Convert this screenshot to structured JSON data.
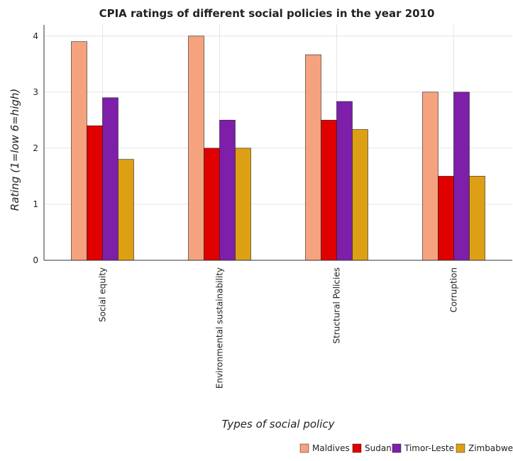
{
  "chart_data": {
    "type": "bar",
    "title": "CPIA ratings of different social policies in the year 2010",
    "xlabel": "Types of social policy",
    "ylabel": "Rating (1=low 6=high)",
    "ylim": [
      0,
      4.2
    ],
    "yticks": [
      0,
      1,
      2,
      3,
      4
    ],
    "grid": true,
    "legend_position": "bottom-right",
    "categories": [
      "Social equity",
      "Environmental sustainability",
      "Structural Policies",
      "Corruption"
    ],
    "series": [
      {
        "name": "Maldives",
        "color": "#f5a27f",
        "values": [
          3.9,
          4.0,
          3.667,
          3.0
        ]
      },
      {
        "name": "Sudan",
        "color": "#e00000",
        "values": [
          2.4,
          2.0,
          2.5,
          1.5
        ]
      },
      {
        "name": "Timor-Leste",
        "color": "#7d1fa8",
        "values": [
          2.9,
          2.5,
          2.833,
          3.0
        ]
      },
      {
        "name": "Zimbabwe",
        "color": "#dda015",
        "values": [
          1.8,
          2.0,
          2.333,
          1.5
        ]
      }
    ]
  }
}
